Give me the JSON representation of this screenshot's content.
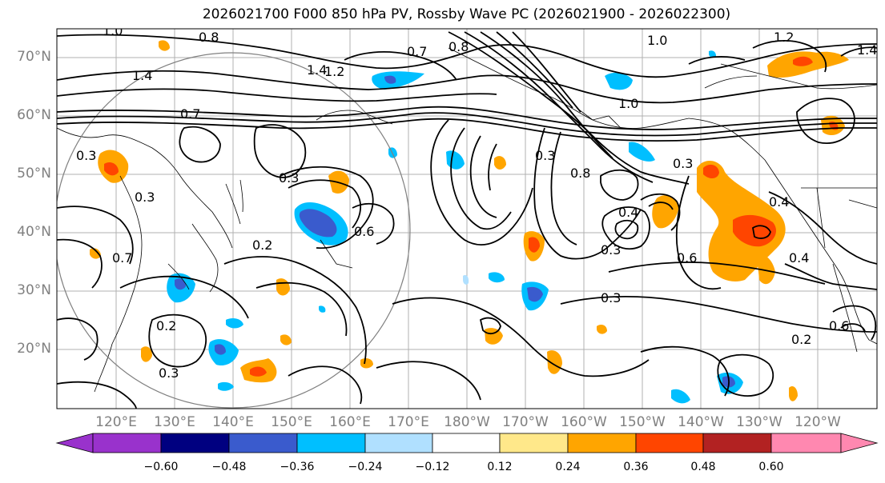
{
  "title": "2026021700 F000 850 hPa PV, Rossby Wave PC (2026021900 - 2026022300)",
  "map": {
    "lat_labels": [
      "70°N",
      "60°N",
      "50°N",
      "40°N",
      "30°N",
      "20°N"
    ],
    "lon_labels": [
      "120°E",
      "130°E",
      "140°E",
      "150°E",
      "160°E",
      "170°E",
      "180°W",
      "170°W",
      "160°W",
      "150°W",
      "140°W",
      "130°W",
      "120°W"
    ],
    "contour_labels": [
      {
        "text": "1.0"
      },
      {
        "text": "0.8"
      },
      {
        "text": "1.4"
      },
      {
        "text": "1.2"
      },
      {
        "text": "1.4"
      },
      {
        "text": "0.7"
      },
      {
        "text": "0.8"
      },
      {
        "text": "1.0"
      },
      {
        "text": "1.2"
      },
      {
        "text": "1.4"
      },
      {
        "text": "1.0"
      },
      {
        "text": "0.7"
      },
      {
        "text": "0.3"
      },
      {
        "text": "0.3"
      },
      {
        "text": "0.6"
      },
      {
        "text": "0.2"
      },
      {
        "text": "0.3"
      },
      {
        "text": "0.8"
      },
      {
        "text": "0.4"
      },
      {
        "text": "0.3"
      },
      {
        "text": "0.6"
      },
      {
        "text": "0.3"
      },
      {
        "text": "0.4"
      },
      {
        "text": "0.4"
      },
      {
        "text": "0.2"
      },
      {
        "text": "0.2"
      },
      {
        "text": "0.3"
      },
      {
        "text": "0.3"
      },
      {
        "text": "0.7"
      },
      {
        "text": "0.3"
      },
      {
        "text": "0.6"
      }
    ]
  },
  "colorbar": {
    "ticks": [
      "−0.60",
      "−0.48",
      "−0.36",
      "−0.24",
      "−0.12",
      "0.12",
      "0.24",
      "0.36",
      "0.48",
      "0.60"
    ],
    "colors": {
      "under": "#9932cc",
      "c1": "#000080",
      "c2": "#3a5bcd",
      "c3": "#00bfff",
      "c4": "#b0e0ff",
      "c5": "#ffffff",
      "c6": "#ffe88a",
      "c7": "#ffa500",
      "c8": "#ff4500",
      "c9": "#b22222",
      "over": "#ff88b0"
    }
  }
}
